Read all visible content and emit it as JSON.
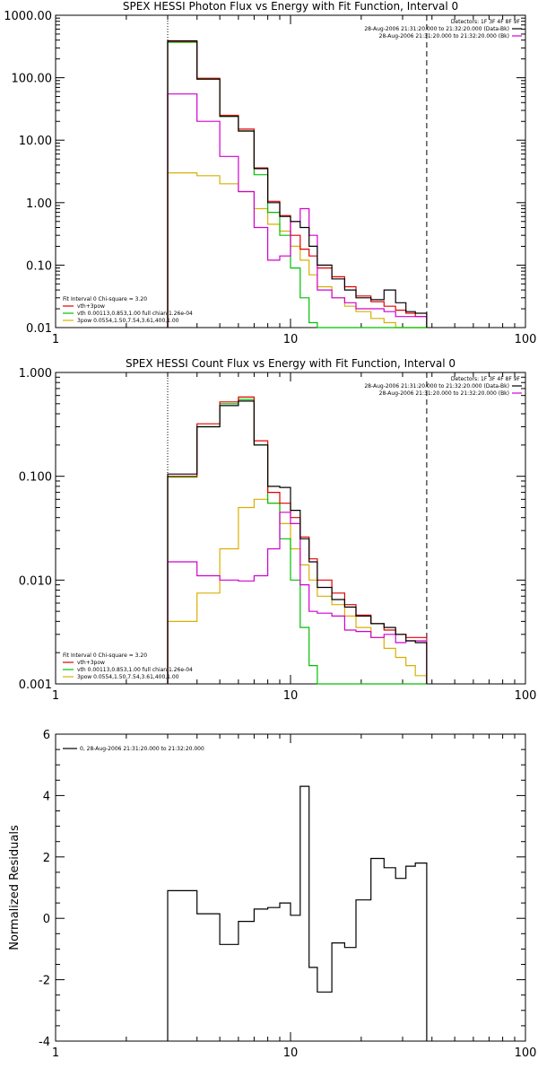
{
  "chart_data": [
    {
      "type": "line",
      "title": "SPEX HESSI Photon Flux vs Energy with Fit Function, Interval 0",
      "xlabel": "",
      "ylabel": "",
      "xscale": "log",
      "yscale": "log",
      "xlim": [
        1,
        100
      ],
      "ylim": [
        0.01,
        1000
      ],
      "xticks": [
        "1",
        "10",
        "100"
      ],
      "yticks": [
        "0.01",
        "0.10",
        "1.00",
        "10.00",
        "100.00",
        "1000.00"
      ],
      "info_lines": [
        "Detectors: 1F 3F 4F 8F 9F",
        "28-Aug-2006 21:31:20.000 to 21:32:20.000 (Data-Bk)",
        "28-Aug-2006 21:31:20.000 to 21:32:20.000 (Bk)"
      ],
      "fit_lines": [
        "Fit Interval 0   Chi-square = 3.20",
        "vth+3pow",
        "vth 0.00113,0.853,1.00   full chian 1.26e-04",
        "3pow 0.0554,1.50,7.54,3.61,400,1.00"
      ],
      "vlines": [
        3.0,
        38.0
      ],
      "edges": [
        3.0,
        4.0,
        5.0,
        6.0,
        7.0,
        8.0,
        9.0,
        10.0,
        11.0,
        12.0,
        13.0,
        15.0,
        17.0,
        19.0,
        22.0,
        25.0,
        28.0,
        31.0,
        34.0,
        38.0
      ],
      "series": [
        {
          "name": "Data-Bk",
          "color": "#000000",
          "values": [
            390,
            95,
            24,
            14,
            3.5,
            1.0,
            0.6,
            0.5,
            0.4,
            0.2,
            0.1,
            0.06,
            0.04,
            0.03,
            0.028,
            0.04,
            0.025,
            0.018,
            0.017
          ]
        },
        {
          "name": "Bk",
          "color": "#d000d0",
          "values": [
            55,
            20,
            5.5,
            1.5,
            0.4,
            0.12,
            0.14,
            0.5,
            0.8,
            0.3,
            0.04,
            0.03,
            0.025,
            0.02,
            0.02,
            0.018,
            0.015,
            0.015,
            0.015
          ]
        },
        {
          "name": "vth+3pow",
          "color": "#e00000",
          "values": [
            380,
            98,
            25,
            15,
            3.6,
            1.05,
            0.62,
            0.3,
            0.18,
            0.14,
            0.09,
            0.065,
            0.045,
            0.032,
            0.026,
            0.022,
            0.019,
            0.017,
            0.015
          ]
        },
        {
          "name": "vth",
          "color": "#00c000",
          "values": [
            370,
            95,
            24,
            14,
            2.8,
            0.7,
            0.3,
            0.09,
            0.03,
            0.012,
            0.01,
            0.01,
            0.01,
            0.01,
            0.01,
            0.01,
            0.01,
            0.01,
            0.01
          ]
        },
        {
          "name": "3pow",
          "color": "#d8b000",
          "values": [
            3.0,
            2.7,
            2.0,
            1.5,
            0.8,
            0.45,
            0.35,
            0.2,
            0.12,
            0.07,
            0.045,
            0.03,
            0.022,
            0.018,
            0.014,
            0.012,
            0.01,
            0.01,
            0.01
          ]
        }
      ]
    },
    {
      "type": "line",
      "title": "SPEX HESSI Count Flux vs Energy with Fit Function, Interval 0",
      "xlabel": "",
      "ylabel": "",
      "xscale": "log",
      "yscale": "log",
      "xlim": [
        1,
        100
      ],
      "ylim": [
        0.001,
        1
      ],
      "xticks": [
        "1",
        "10",
        "100"
      ],
      "yticks": [
        "0.001",
        "0.010",
        "0.100",
        "1.000"
      ],
      "info_lines": [
        "Detectors: 1F 3F 4F 8F 9F",
        "28-Aug-2006 21:31:20.000 to 21:32:20.000 (Data-Bk)",
        "28-Aug-2006 21:31:20.000 to 21:32:20.000 (Bk)"
      ],
      "fit_lines": [
        "Fit Interval 0   Chi-square = 3.20",
        "vth+3pow",
        "vth 0.00113,0.853,1.00   full chian 1.26e-04",
        "3pow 0.0554,1.50,7.54,3.61,400,1.00"
      ],
      "vlines": [
        3.0,
        38.0
      ],
      "edges": [
        3.0,
        4.0,
        5.0,
        6.0,
        7.0,
        8.0,
        9.0,
        10.0,
        11.0,
        12.0,
        13.0,
        15.0,
        17.0,
        19.0,
        22.0,
        25.0,
        28.0,
        31.0,
        34.0,
        38.0
      ],
      "series": [
        {
          "name": "Data-Bk",
          "color": "#000000",
          "values": [
            0.105,
            0.3,
            0.48,
            0.53,
            0.2,
            0.08,
            0.078,
            0.047,
            0.025,
            0.015,
            0.0085,
            0.0065,
            0.0055,
            0.0045,
            0.0038,
            0.0035,
            0.003,
            0.0026,
            0.0025
          ]
        },
        {
          "name": "Bk",
          "color": "#d000d0",
          "values": [
            0.015,
            0.011,
            0.01,
            0.0098,
            0.011,
            0.02,
            0.045,
            0.035,
            0.009,
            0.005,
            0.0048,
            0.0045,
            0.0033,
            0.0032,
            0.0028,
            0.003,
            0.0025,
            0.0026,
            0.0026
          ]
        },
        {
          "name": "vth+3pow",
          "color": "#e00000",
          "values": [
            0.1,
            0.32,
            0.52,
            0.58,
            0.22,
            0.07,
            0.055,
            0.04,
            0.026,
            0.016,
            0.01,
            0.0075,
            0.0058,
            0.0046,
            0.0038,
            0.0033,
            0.003,
            0.0028,
            0.0028
          ]
        },
        {
          "name": "vth",
          "color": "#00c000",
          "values": [
            0.098,
            0.3,
            0.5,
            0.55,
            0.2,
            0.055,
            0.025,
            0.01,
            0.0035,
            0.0015,
            0.001,
            0.001,
            0.001,
            0.001,
            0.001,
            0.001,
            0.001,
            0.001,
            0.001
          ]
        },
        {
          "name": "3pow",
          "color": "#d8b000",
          "values": [
            0.004,
            0.0075,
            0.02,
            0.05,
            0.06,
            0.055,
            0.035,
            0.02,
            0.014,
            0.01,
            0.007,
            0.0058,
            0.0045,
            0.0035,
            0.0028,
            0.0022,
            0.0018,
            0.0015,
            0.0012
          ]
        }
      ]
    },
    {
      "type": "line",
      "title": "",
      "xlabel": "",
      "ylabel": "Normalized Residuals",
      "xscale": "log",
      "yscale": "linear",
      "xlim": [
        1,
        100
      ],
      "ylim": [
        -4,
        6
      ],
      "xticks": [
        "1",
        "10",
        "100"
      ],
      "yticks": [
        "-4",
        "-2",
        "0",
        "2",
        "4",
        "6"
      ],
      "legend": "0, 28-Aug-2006 21:31:20.000 to 21:32:20.000",
      "edges": [
        3.0,
        4.0,
        5.0,
        6.0,
        7.0,
        8.0,
        9.0,
        10.0,
        11.0,
        12.0,
        13.0,
        15.0,
        17.0,
        19.0,
        22.0,
        25.0,
        28.0,
        31.0,
        34.0,
        38.0
      ],
      "series": [
        {
          "name": "0, 28-Aug-2006 21:31:20.000 to 21:32:20.000",
          "color": "#000000",
          "values": [
            0.9,
            0.15,
            -0.85,
            -0.1,
            0.3,
            0.35,
            0.5,
            0.1,
            4.3,
            -1.6,
            -2.4,
            -0.8,
            -0.95,
            0.6,
            1.95,
            1.65,
            1.3,
            1.7,
            1.8
          ]
        }
      ]
    }
  ]
}
